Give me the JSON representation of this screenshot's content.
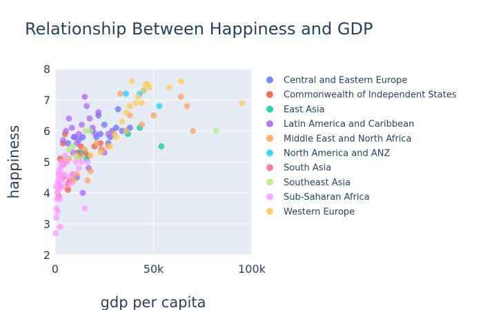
{
  "chart_data": {
    "type": "scatter",
    "title": "Relationship Between Happiness and GDP",
    "xlabel": "gdp per capita",
    "ylabel": "happiness",
    "xlim": [
      0,
      100000
    ],
    "ylim": [
      2,
      8
    ],
    "x_ticks": [
      0,
      50000,
      100000
    ],
    "x_tick_labels": [
      "0",
      "50k",
      "100k"
    ],
    "y_ticks": [
      2,
      3,
      4,
      5,
      6,
      7,
      8
    ],
    "y_tick_labels": [
      "2",
      "3",
      "4",
      "5",
      "6",
      "7",
      "8"
    ],
    "grid": true,
    "legend_position": "right",
    "series": [
      {
        "name": "Central and Eastern Europe",
        "color": "#636efa",
        "points": [
          [
            6500,
            5.6
          ],
          [
            9500,
            5.8
          ],
          [
            12000,
            5.7
          ],
          [
            14000,
            5.8
          ],
          [
            19000,
            6.0
          ],
          [
            21000,
            5.8
          ],
          [
            23000,
            5.9
          ],
          [
            25000,
            6.2
          ],
          [
            27000,
            5.6
          ],
          [
            28000,
            5.8
          ],
          [
            29000,
            6.0
          ],
          [
            31000,
            6.1
          ],
          [
            32000,
            6.7
          ],
          [
            34000,
            6.0
          ],
          [
            36000,
            6.0
          ],
          [
            38000,
            6.1
          ],
          [
            22000,
            6.5
          ],
          [
            11000,
            4.5
          ]
        ]
      },
      {
        "name": "Commonwealth of Independent States",
        "color": "#EF553B",
        "points": [
          [
            2500,
            5.1
          ],
          [
            4000,
            5.6
          ],
          [
            5000,
            5.9
          ],
          [
            6500,
            4.1
          ],
          [
            7500,
            4.4
          ],
          [
            9000,
            4.6
          ],
          [
            11500,
            5.3
          ],
          [
            13000,
            5.5
          ],
          [
            15000,
            5.3
          ],
          [
            17000,
            5.2
          ],
          [
            20000,
            5.5
          ],
          [
            23000,
            5.6
          ]
        ]
      },
      {
        "name": "East Asia",
        "color": "#00cc96",
        "points": [
          [
            13000,
            5.3
          ],
          [
            16000,
            5.1
          ],
          [
            37000,
            5.9
          ],
          [
            43000,
            6.1
          ],
          [
            54000,
            5.5
          ]
        ]
      },
      {
        "name": "Latin America and Caribbean",
        "color": "#ab63fa",
        "points": [
          [
            4000,
            5.7
          ],
          [
            5500,
            6.0
          ],
          [
            7000,
            6.4
          ],
          [
            8500,
            6.1
          ],
          [
            10000,
            5.8
          ],
          [
            12000,
            5.9
          ],
          [
            13500,
            6.2
          ],
          [
            15000,
            7.1
          ],
          [
            16000,
            6.8
          ],
          [
            17500,
            6.4
          ],
          [
            19000,
            6.1
          ],
          [
            20500,
            5.9
          ],
          [
            22000,
            6.6
          ],
          [
            23500,
            5.4
          ],
          [
            25000,
            5.3
          ],
          [
            14000,
            4.0
          ],
          [
            11000,
            5.6
          ],
          [
            9000,
            5.3
          ],
          [
            17000,
            4.8
          ],
          [
            27000,
            5.9
          ]
        ]
      },
      {
        "name": "Middle East and North Africa",
        "color": "#FFA15A",
        "points": [
          [
            4000,
            4.9
          ],
          [
            7000,
            5.1
          ],
          [
            9500,
            4.4
          ],
          [
            11000,
            4.6
          ],
          [
            13000,
            5.2
          ],
          [
            15000,
            5.4
          ],
          [
            16500,
            4.4
          ],
          [
            18000,
            4.7
          ],
          [
            21000,
            5.6
          ],
          [
            24000,
            5.4
          ],
          [
            27000,
            5.5
          ],
          [
            30000,
            5.9
          ],
          [
            33000,
            7.2
          ],
          [
            38000,
            6.5
          ],
          [
            44000,
            6.2
          ],
          [
            50000,
            6.5
          ],
          [
            64000,
            7.1
          ],
          [
            67000,
            6.8
          ],
          [
            70000,
            6.0
          ]
        ]
      },
      {
        "name": "North America and ANZ",
        "color": "#19d3f3",
        "points": [
          [
            36000,
            7.2
          ],
          [
            43000,
            7.2
          ],
          [
            45000,
            7.3
          ],
          [
            53000,
            6.8
          ]
        ]
      },
      {
        "name": "South Asia",
        "color": "#FF6692",
        "points": [
          [
            1800,
            3.9
          ],
          [
            2500,
            4.2
          ],
          [
            4000,
            4.5
          ],
          [
            5000,
            5.0
          ],
          [
            6500,
            4.3
          ],
          [
            12000,
            5.2
          ]
        ]
      },
      {
        "name": "Southeast Asia",
        "color": "#B6E880",
        "points": [
          [
            3500,
            4.6
          ],
          [
            5500,
            5.1
          ],
          [
            7000,
            5.4
          ],
          [
            9000,
            5.5
          ],
          [
            10500,
            5.2
          ],
          [
            12000,
            5.1
          ],
          [
            15500,
            6.0
          ],
          [
            18000,
            6.0
          ],
          [
            82000,
            6.0
          ]
        ]
      },
      {
        "name": "Sub-Saharan Africa",
        "color": "#FF97FF",
        "points": [
          [
            300,
            2.7
          ],
          [
            500,
            3.2
          ],
          [
            700,
            3.5
          ],
          [
            900,
            3.8
          ],
          [
            1100,
            4.0
          ],
          [
            1300,
            4.3
          ],
          [
            1500,
            4.4
          ],
          [
            1700,
            4.6
          ],
          [
            1900,
            4.7
          ],
          [
            2100,
            4.2
          ],
          [
            2300,
            3.8
          ],
          [
            2500,
            4.5
          ],
          [
            2700,
            4.8
          ],
          [
            2900,
            5.0
          ],
          [
            3200,
            4.4
          ],
          [
            3600,
            4.9
          ],
          [
            4000,
            4.2
          ],
          [
            4500,
            4.6
          ],
          [
            5000,
            5.2
          ],
          [
            6000,
            5.0
          ],
          [
            7000,
            4.5
          ],
          [
            8000,
            4.3
          ],
          [
            9000,
            4.6
          ],
          [
            10500,
            5.0
          ],
          [
            12000,
            4.8
          ],
          [
            13500,
            5.0
          ],
          [
            15000,
            3.5
          ],
          [
            16500,
            5.0
          ],
          [
            1200,
            3.4
          ],
          [
            2400,
            2.9
          ],
          [
            1600,
            4.1
          ],
          [
            600,
            4.2
          ]
        ]
      },
      {
        "name": "Western Europe",
        "color": "#FECB52",
        "points": [
          [
            18000,
            5.2
          ],
          [
            23000,
            5.3
          ],
          [
            28000,
            5.5
          ],
          [
            31000,
            5.8
          ],
          [
            34000,
            6.3
          ],
          [
            36000,
            6.6
          ],
          [
            38000,
            6.8
          ],
          [
            39000,
            7.6
          ],
          [
            41000,
            6.9
          ],
          [
            42000,
            7.1
          ],
          [
            44000,
            6.9
          ],
          [
            45000,
            7.3
          ],
          [
            46000,
            7.5
          ],
          [
            47000,
            7.5
          ],
          [
            48000,
            7.4
          ],
          [
            58000,
            7.4
          ],
          [
            64000,
            7.6
          ],
          [
            95000,
            6.9
          ],
          [
            36000,
            6.0
          ]
        ]
      }
    ]
  }
}
